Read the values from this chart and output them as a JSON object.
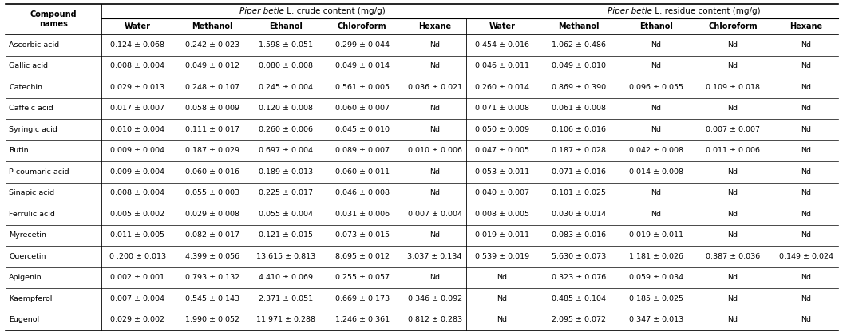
{
  "compounds": [
    "Ascorbic acid",
    "Gallic acid",
    "Catechin",
    "Caffeic acid",
    "Syringic acid",
    "Rutin",
    "P-coumaric acid",
    "Sinapic acid",
    "Ferrulic acid",
    "Myrecetin",
    "Quercetin",
    "Apigenin",
    "Kaempferol",
    "Eugenol"
  ],
  "data": [
    [
      "0.124 ± 0.068",
      "0.242 ± 0.023",
      "1.598 ± 0.051",
      "0.299 ± 0.044",
      "Nd",
      "0.454 ± 0.016",
      "1.062 ± 0.486",
      "Nd",
      "Nd",
      "Nd"
    ],
    [
      "0.008 ± 0.004",
      "0.049 ± 0.012",
      "0.080 ± 0.008",
      "0.049 ± 0.014",
      "Nd",
      "0.046 ± 0.011",
      "0.049 ± 0.010",
      "Nd",
      "Nd",
      "Nd"
    ],
    [
      "0.029 ± 0.013",
      "0.248 ± 0.107",
      "0.245 ± 0.004",
      "0.561 ± 0.005",
      "0.036 ± 0.021",
      "0.260 ± 0.014",
      "0.869 ± 0.390",
      "0.096 ± 0.055",
      "0.109 ± 0.018",
      "Nd"
    ],
    [
      "0.017 ± 0.007",
      "0.058 ± 0.009",
      "0.120 ± 0.008",
      "0.060 ± 0.007",
      "Nd",
      "0.071 ± 0.008",
      "0.061 ± 0.008",
      "Nd",
      "Nd",
      "Nd"
    ],
    [
      "0.010 ± 0.004",
      "0.111 ± 0.017",
      "0.260 ± 0.006",
      "0.045 ± 0.010",
      "Nd",
      "0.050 ± 0.009",
      "0.106 ± 0.016",
      "Nd",
      "0.007 ± 0.007",
      "Nd"
    ],
    [
      "0.009 ± 0.004",
      "0.187 ± 0.029",
      "0.697 ± 0.004",
      "0.089 ± 0.007",
      "0.010 ± 0.006",
      "0.047 ± 0.005",
      "0.187 ± 0.028",
      "0.042 ± 0.008",
      "0.011 ± 0.006",
      "Nd"
    ],
    [
      "0.009 ± 0.004",
      "0.060 ± 0.016",
      "0.189 ± 0.013",
      "0.060 ± 0.011",
      "Nd",
      "0.053 ± 0.011",
      "0.071 ± 0.016",
      "0.014 ± 0.008",
      "Nd",
      "Nd"
    ],
    [
      "0.008 ± 0.004",
      "0.055 ± 0.003",
      "0.225 ± 0.017",
      "0.046 ± 0.008",
      "Nd",
      "0.040 ± 0.007",
      "0.101 ± 0.025",
      "Nd",
      "Nd",
      "Nd"
    ],
    [
      "0.005 ± 0.002",
      "0.029 ± 0.008",
      "0.055 ± 0.004",
      "0.031 ± 0.006",
      "0.007 ± 0.004",
      "0.008 ± 0.005",
      "0.030 ± 0.014",
      "Nd",
      "Nd",
      "Nd"
    ],
    [
      "0.011 ± 0.005",
      "0.082 ± 0.017",
      "0.121 ± 0.015",
      "0.073 ± 0.015",
      "Nd",
      "0.019 ± 0.011",
      "0.083 ± 0.016",
      "0.019 ± 0.011",
      "Nd",
      "Nd"
    ],
    [
      "0 .200 ± 0.013",
      "4.399 ± 0.056",
      "13.615 ± 0.813",
      "8.695 ± 0.012",
      "3.037 ± 0.134",
      "0.539 ± 0.019",
      "5.630 ± 0.073",
      "1.181 ± 0.026",
      "0.387 ± 0.036",
      "0.149 ± 0.024"
    ],
    [
      "0.002 ± 0.001",
      "0.793 ± 0.132",
      "4.410 ± 0.069",
      "0.255 ± 0.057",
      "Nd",
      "Nd",
      "0.323 ± 0.076",
      "0.059 ± 0.034",
      "Nd",
      "Nd"
    ],
    [
      "0.007 ± 0.004",
      "0.545 ± 0.143",
      "2.371 ± 0.051",
      "0.669 ± 0.173",
      "0.346 ± 0.092",
      "Nd",
      "0.485 ± 0.104",
      "0.185 ± 0.025",
      "Nd",
      "Nd"
    ],
    [
      "0.029 ± 0.002",
      "1.990 ± 0.052",
      "11.971 ± 0.288",
      "1.246 ± 0.361",
      "0.812 ± 0.283",
      "Nd",
      "2.095 ± 0.072",
      "0.347 ± 0.013",
      "Nd",
      "Nd"
    ]
  ],
  "col_headers": [
    "Water",
    "Methanol",
    "Ethanol",
    "Chloroform",
    "Hexane",
    "Water",
    "Methanol",
    "Ethanol",
    "Chloroform",
    "Hexane"
  ],
  "crude_title_italic": "Piper betle",
  "crude_title_normal": " L. crude content (mg/g)",
  "residue_title_italic": "Piper betle",
  "residue_title_normal": " L. residue content (mg/g)",
  "compound_header": "Compound\nnames",
  "bg_color": "#ffffff",
  "text_color": "#000000",
  "header_fontsize": 7.0,
  "cell_fontsize": 6.8,
  "title_fontsize": 7.5
}
